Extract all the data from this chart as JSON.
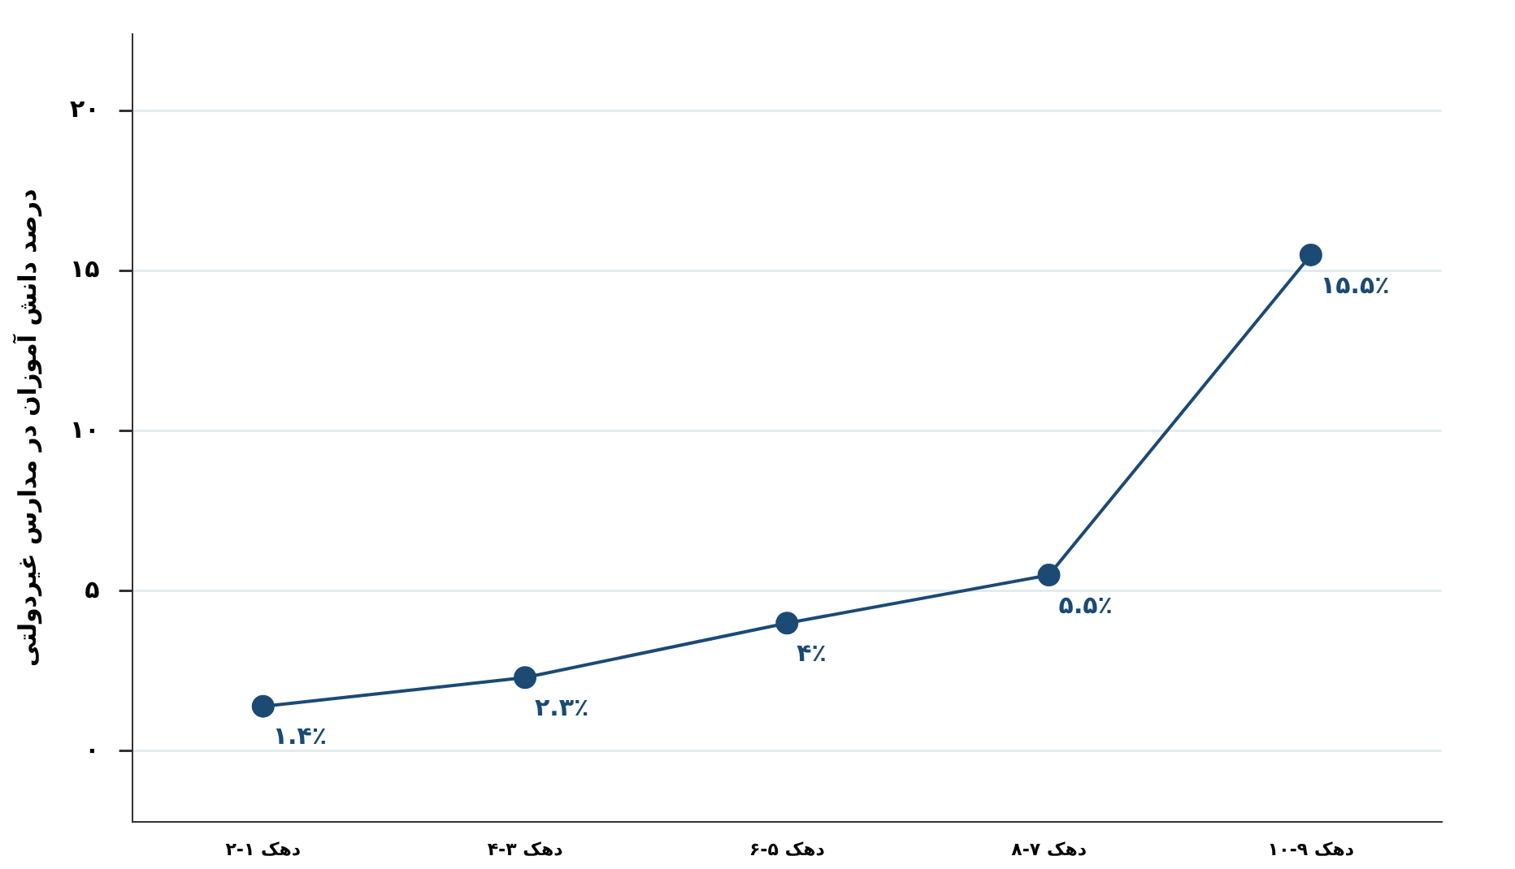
{
  "chart_data": {
    "type": "line",
    "ylabel": "درصد دانش آموزان در مدارس غیردولتی",
    "categories": [
      "دهک ۱-۲",
      "دهک ۳-۴",
      "دهک ۵-۶",
      "دهک ۷-۸",
      "دهک ۹-۱۰"
    ],
    "series": [
      {
        "color": "#1b4a74",
        "values": [
          1.4,
          2.3,
          4,
          5.5,
          15.5
        ],
        "value_labels": [
          "۱.۴٪",
          "۲.۳٪",
          "۴٪",
          "۵.۵٪",
          "۱۵.۵٪"
        ]
      }
    ],
    "ylim": [
      -2.2,
      22.4
    ],
    "yticks": [
      {
        "value": 0,
        "label": "۰"
      },
      {
        "value": 5,
        "label": "۵"
      },
      {
        "value": 10,
        "label": "۱۰"
      },
      {
        "value": 15,
        "label": "۱۵"
      },
      {
        "value": 20,
        "label": "۲۰"
      }
    ],
    "grid": "y",
    "marker": "circle",
    "line_style": "solid",
    "legend": false
  }
}
